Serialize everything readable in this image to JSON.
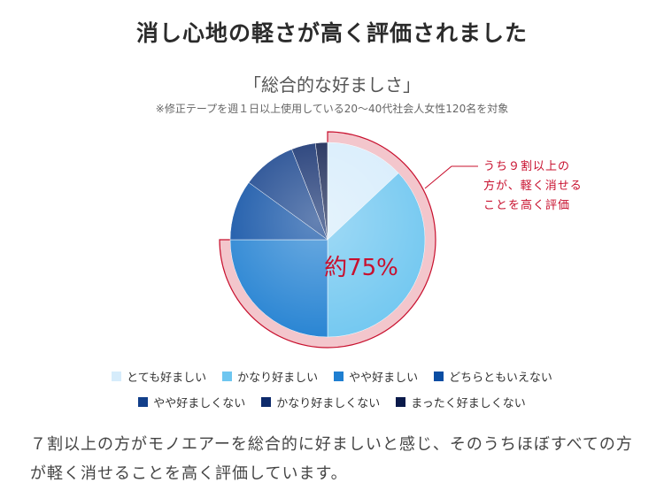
{
  "headline": "消し心地の軽さが高く評価されました",
  "callout": [
    "うち９割以上の",
    "方が、軽く消せる",
    "ことを高く評価"
  ],
  "body_text": "７割以上の方がモノエアーを総合的に好ましいと感じ、そのうちほぼすべての方が軽く消せることを高く評価しています。",
  "chart_data": {
    "type": "pie",
    "title": "「総合的な好ましさ」",
    "note": "※修正テープを週１日以上使用している20〜40代社会人女性120名を対象",
    "highlight_label": "約75%",
    "highlight_fraction": 0.75,
    "categories": [
      "とても好ましい",
      "かなり好ましい",
      "やや好ましい",
      "どちらともいえない",
      "やや好ましくない",
      "かなり好ましくない",
      "まったく好ましくない"
    ],
    "values": [
      13,
      37,
      25,
      10,
      9,
      4,
      2
    ],
    "colors": [
      "#d6ecfb",
      "#6ec6f0",
      "#1f7fd1",
      "#0a4da3",
      "#123f8a",
      "#0d2a6b",
      "#0a1a4a"
    ],
    "legend_rows": [
      [
        0,
        1,
        2,
        3
      ],
      [
        4,
        5,
        6
      ]
    ]
  }
}
